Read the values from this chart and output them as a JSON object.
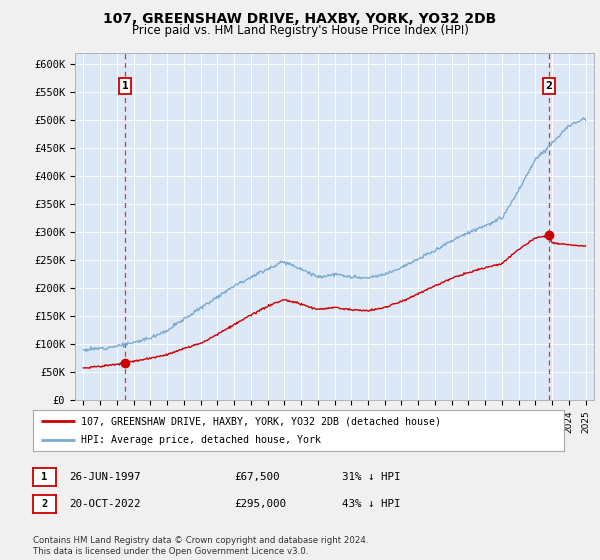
{
  "title": "107, GREENSHAW DRIVE, HAXBY, YORK, YO32 2DB",
  "subtitle": "Price paid vs. HM Land Registry's House Price Index (HPI)",
  "ylim": [
    0,
    620000
  ],
  "yticks": [
    0,
    50000,
    100000,
    150000,
    200000,
    250000,
    300000,
    350000,
    400000,
    450000,
    500000,
    550000,
    600000
  ],
  "ytick_labels": [
    "£0",
    "£50K",
    "£100K",
    "£150K",
    "£200K",
    "£250K",
    "£300K",
    "£350K",
    "£400K",
    "£450K",
    "£500K",
    "£550K",
    "£600K"
  ],
  "xlim_start": 1994.5,
  "xlim_end": 2025.5,
  "hpi_color": "#7aaad0",
  "price_color": "#cc0000",
  "dot_color": "#cc0000",
  "marker1_x": 1997.48,
  "marker1_y": 67500,
  "marker2_x": 2022.79,
  "marker2_y": 295000,
  "marker1_label": "1",
  "marker2_label": "2",
  "legend_line1": "107, GREENSHAW DRIVE, HAXBY, YORK, YO32 2DB (detached house)",
  "legend_line2": "HPI: Average price, detached house, York",
  "table_row1": [
    "1",
    "26-JUN-1997",
    "£67,500",
    "31% ↓ HPI"
  ],
  "table_row2": [
    "2",
    "20-OCT-2022",
    "£295,000",
    "43% ↓ HPI"
  ],
  "footnote": "Contains HM Land Registry data © Crown copyright and database right 2024.\nThis data is licensed under the Open Government Licence v3.0.",
  "fig_bg": "#f0f0f0",
  "plot_bg": "#dce8f5",
  "grid_color": "#ffffff",
  "hpi_anchors_x": [
    1995,
    1996,
    1997,
    1998,
    1999,
    2000,
    2001,
    2002,
    2003,
    2004,
    2005,
    2006,
    2007,
    2008,
    2009,
    2010,
    2011,
    2012,
    2013,
    2014,
    2015,
    2016,
    2017,
    2018,
    2019,
    2020,
    2021,
    2022,
    2023,
    2024,
    2025
  ],
  "hpi_anchors_y": [
    90000,
    93000,
    97000,
    103000,
    112000,
    125000,
    145000,
    165000,
    185000,
    205000,
    220000,
    235000,
    248000,
    235000,
    220000,
    225000,
    220000,
    218000,
    225000,
    238000,
    252000,
    268000,
    285000,
    300000,
    312000,
    325000,
    375000,
    430000,
    460000,
    490000,
    505000
  ],
  "price_anchors_x": [
    1995,
    1996,
    1997.0,
    1997.48,
    1998,
    1999,
    2000,
    2001,
    2002,
    2003,
    2004,
    2005,
    2006,
    2007,
    2008,
    2009,
    2010,
    2011,
    2012,
    2013,
    2014,
    2015,
    2016,
    2017,
    2018,
    2019,
    2020,
    2021,
    2022.0,
    2022.79,
    2023,
    2024,
    2025
  ],
  "price_anchors_y": [
    58000,
    61000,
    64000,
    67500,
    70000,
    75000,
    82000,
    92000,
    102000,
    118000,
    135000,
    152000,
    168000,
    180000,
    172000,
    162000,
    166000,
    162000,
    160000,
    166000,
    177000,
    190000,
    205000,
    218000,
    228000,
    237000,
    244000,
    270000,
    290000,
    295000,
    282000,
    278000,
    275000
  ]
}
